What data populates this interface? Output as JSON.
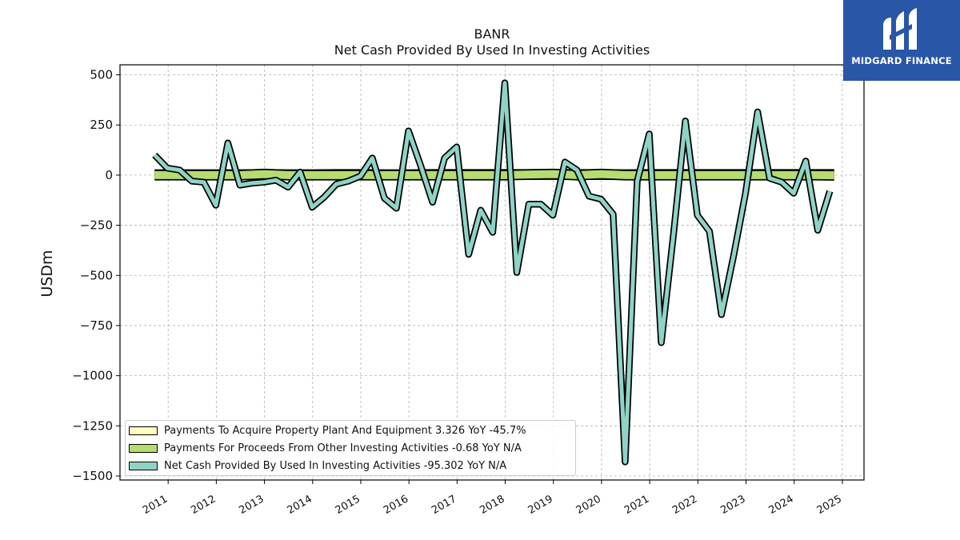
{
  "header": {
    "ticker": "BANR",
    "subtitle": "Net Cash Provided By Used In Investing Activities"
  },
  "logo": {
    "text": "MIDGARD FINANCE"
  },
  "legend": {
    "items": [
      {
        "label": "Payments To Acquire Property Plant And Equipment  3.326 YoY -45.7%",
        "color": "#ffffc0"
      },
      {
        "label": "Payments For Proceeds From Other Investing Activities  -0.68 YoY N/A",
        "color": "#b5dc6e"
      },
      {
        "label": "Net Cash Provided By Used In Investing Activities  -95.302 YoY N/A",
        "color": "#8fd3c6"
      }
    ]
  },
  "chart_data": {
    "type": "line",
    "title": "BANR",
    "subtitle": "Net Cash Provided By Used In Investing Activities",
    "ylabel": "USDm",
    "xlabel": "",
    "xlim": [
      2010.0,
      2025.45
    ],
    "ylim": [
      -1520,
      550
    ],
    "yticks": [
      500,
      250,
      0,
      -250,
      -500,
      -750,
      -1000,
      -1250,
      -1500
    ],
    "ytick_labels": [
      "500",
      "250",
      "0",
      "−250",
      "−500",
      "−750",
      "−1000",
      "−1250",
      "−1500"
    ],
    "xticks": [
      2011,
      2012,
      2013,
      2014,
      2015,
      2016,
      2017,
      2018,
      2019,
      2020,
      2021,
      2022,
      2023,
      2024,
      2025
    ],
    "xtick_labels": [
      "2011",
      "2012",
      "2013",
      "2014",
      "2015",
      "2016",
      "2017",
      "2018",
      "2019",
      "2020",
      "2021",
      "2022",
      "2023",
      "2024",
      "2025"
    ],
    "grid": true,
    "legend_position": "lower-left",
    "series": [
      {
        "name": "Payments To Acquire Property Plant And Equipment  3.326 YoY -45.7%",
        "color": "#ffffc0",
        "x": [
          2010.72,
          2011.0,
          2011.5,
          2012.0,
          2012.5,
          2013.0,
          2013.5,
          2014.0,
          2014.5,
          2015.0,
          2015.5,
          2016.0,
          2016.5,
          2017.0,
          2017.5,
          2018.0,
          2018.5,
          2019.0,
          2019.5,
          2020.0,
          2020.5,
          2021.0,
          2021.5,
          2022.0,
          2022.5,
          2023.0,
          2023.5,
          2024.0,
          2024.5,
          2024.83
        ],
        "values": [
          2,
          2,
          2,
          2,
          2,
          3,
          2,
          2,
          3,
          3,
          2,
          2,
          3,
          3,
          3,
          3,
          3,
          3,
          3,
          3,
          2,
          3,
          3,
          3,
          3,
          3,
          3,
          3,
          3,
          3.3
        ]
      },
      {
        "name": "Payments For Proceeds From Other Investing Activities  -0.68 YoY N/A",
        "color": "#b5dc6e",
        "x": [
          2010.72,
          2011.0,
          2011.5,
          2012.0,
          2012.5,
          2013.0,
          2013.5,
          2014.0,
          2014.5,
          2015.0,
          2015.5,
          2016.0,
          2016.5,
          2017.0,
          2017.5,
          2018.0,
          2018.5,
          2019.0,
          2019.5,
          2020.0,
          2020.5,
          2021.0,
          2021.5,
          2022.0,
          2022.5,
          2023.0,
          2023.5,
          2024.0,
          2024.5,
          2024.83
        ],
        "values": [
          0,
          0,
          0,
          0,
          0,
          5,
          0,
          0,
          0,
          0,
          0,
          0,
          0,
          0,
          0,
          0,
          3,
          5,
          0,
          5,
          0,
          0,
          0,
          0,
          0,
          0,
          0,
          0,
          0,
          -0.7
        ]
      },
      {
        "name": "Net Cash Provided By Used In Investing Activities  -95.302 YoY N/A",
        "color": "#8fd3c6",
        "x": [
          2010.72,
          2010.98,
          2011.24,
          2011.49,
          2011.74,
          2011.99,
          2012.24,
          2012.49,
          2012.74,
          2012.99,
          2013.24,
          2013.49,
          2013.74,
          2013.99,
          2014.24,
          2014.49,
          2014.74,
          2014.99,
          2015.24,
          2015.49,
          2015.74,
          2015.99,
          2016.24,
          2016.49,
          2016.74,
          2016.99,
          2017.24,
          2017.49,
          2017.74,
          2017.99,
          2018.24,
          2018.49,
          2018.74,
          2018.99,
          2019.24,
          2019.49,
          2019.74,
          2019.99,
          2020.24,
          2020.49,
          2020.74,
          2020.99,
          2021.24,
          2021.49,
          2021.74,
          2021.99,
          2022.24,
          2022.49,
          2022.74,
          2022.99,
          2023.24,
          2023.49,
          2023.74,
          2023.99,
          2024.24,
          2024.49,
          2024.74
        ],
        "values": [
          100,
          35,
          25,
          -30,
          -35,
          -150,
          160,
          -50,
          -40,
          -35,
          -25,
          -60,
          15,
          -160,
          -110,
          -45,
          -30,
          -5,
          85,
          -115,
          -165,
          220,
          50,
          -135,
          85,
          140,
          -395,
          -175,
          -285,
          460,
          -485,
          -145,
          -145,
          -200,
          65,
          25,
          -105,
          -120,
          -195,
          -1430,
          -30,
          205,
          -835,
          -305,
          270,
          -200,
          -280,
          -695,
          -405,
          -90,
          315,
          -15,
          -35,
          -90,
          70,
          -275,
          -80
        ]
      }
    ]
  }
}
